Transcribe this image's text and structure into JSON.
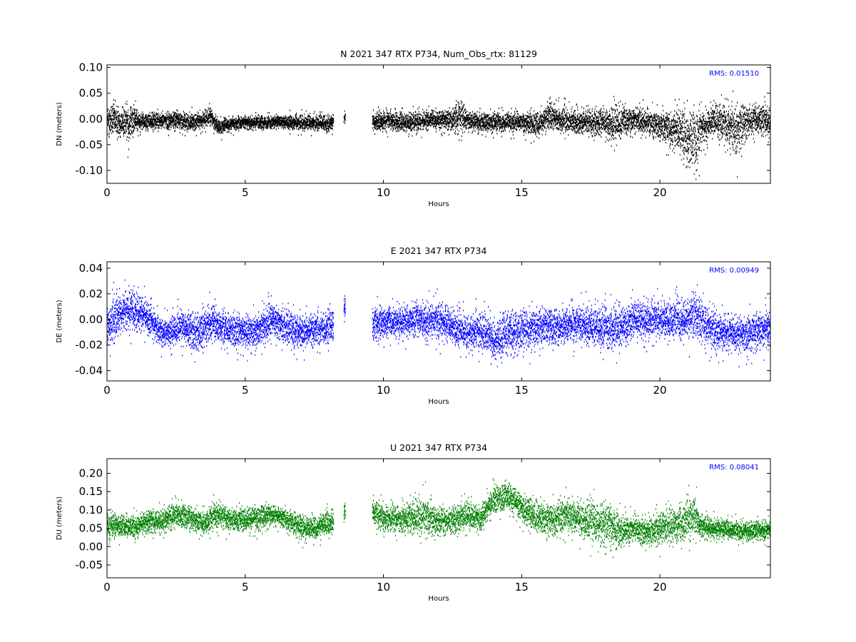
{
  "chart_data": [
    {
      "type": "scatter",
      "title": "N 2021 347 RTX  P734, Num_Obs_rtx: 81129",
      "xlabel": "Hours",
      "ylabel": "DN (meters)",
      "xlim": [
        0,
        24
      ],
      "ylim": [
        -0.125,
        0.105
      ],
      "xticks": [
        "0",
        "5",
        "10",
        "15",
        "20"
      ],
      "yticks": [
        "-0.10",
        "-0.05",
        "0.00",
        "0.05",
        "0.10"
      ],
      "grid": false,
      "color": "#000000",
      "annotation": "RMS:  0.01510",
      "annotation_color": "#0000ff",
      "envelope": {
        "x": [
          0.0,
          0.2,
          0.5,
          0.8,
          1.0,
          1.3,
          2.0,
          2.5,
          3.0,
          3.5,
          3.8,
          4.0,
          4.3,
          5.0,
          6.0,
          7.0,
          8.0,
          8.2,
          8.6,
          9.6,
          10.0,
          11.0,
          12.0,
          12.5,
          12.8,
          13.0,
          13.5,
          14.0,
          15.0,
          15.5,
          16.0,
          17.0,
          18.0,
          18.3,
          19.0,
          20.0,
          20.5,
          21.0,
          21.3,
          21.5,
          22.0,
          22.5,
          22.8,
          23.0,
          23.5,
          24.0
        ],
        "mid": [
          -0.005,
          0.0,
          -0.005,
          -0.005,
          0.0,
          -0.003,
          -0.002,
          0.0,
          -0.005,
          0.0,
          0.005,
          -0.015,
          -0.01,
          -0.005,
          -0.005,
          -0.005,
          -0.008,
          -0.005,
          0.005,
          -0.005,
          -0.003,
          -0.005,
          0.0,
          0.0,
          0.01,
          0.0,
          -0.005,
          -0.005,
          -0.005,
          -0.01,
          0.005,
          -0.005,
          -0.005,
          -0.01,
          0.0,
          -0.01,
          -0.02,
          -0.035,
          -0.045,
          -0.02,
          0.0,
          -0.01,
          -0.025,
          -0.005,
          0.0,
          -0.005
        ],
        "spread": [
          0.035,
          0.04,
          0.035,
          0.045,
          0.03,
          0.02,
          0.018,
          0.02,
          0.018,
          0.018,
          0.02,
          0.018,
          0.015,
          0.014,
          0.014,
          0.016,
          0.016,
          0.016,
          0.01,
          0.02,
          0.02,
          0.02,
          0.02,
          0.025,
          0.045,
          0.02,
          0.02,
          0.02,
          0.02,
          0.025,
          0.03,
          0.025,
          0.03,
          0.035,
          0.025,
          0.03,
          0.04,
          0.06,
          0.065,
          0.045,
          0.035,
          0.05,
          0.055,
          0.045,
          0.03,
          0.03
        ]
      }
    },
    {
      "type": "scatter",
      "title": "E 2021 347 RTX  P734",
      "xlabel": "Hours",
      "ylabel": "DE (meters)",
      "xlim": [
        0,
        24
      ],
      "ylim": [
        -0.048,
        0.045
      ],
      "xticks": [
        "0",
        "5",
        "10",
        "15",
        "20"
      ],
      "yticks": [
        "-0.04",
        "-0.02",
        "0.00",
        "0.02",
        "0.04"
      ],
      "grid": false,
      "color": "#0000ff",
      "annotation": "RMS:  0.00949",
      "annotation_color": "#0000ff",
      "envelope": {
        "x": [
          0.0,
          0.3,
          0.8,
          1.2,
          1.5,
          2.0,
          2.5,
          3.0,
          3.2,
          3.8,
          4.0,
          5.0,
          5.5,
          6.0,
          6.5,
          7.0,
          8.0,
          8.2,
          8.6,
          9.6,
          10.0,
          11.0,
          12.0,
          12.5,
          13.0,
          13.5,
          14.0,
          14.3,
          15.0,
          16.0,
          17.0,
          18.0,
          18.5,
          19.0,
          20.0,
          21.0,
          21.3,
          21.5,
          22.0,
          22.5,
          23.0,
          23.5,
          24.0
        ],
        "mid": [
          -0.008,
          0.002,
          0.008,
          0.005,
          0.0,
          -0.01,
          -0.006,
          -0.005,
          -0.012,
          0.0,
          -0.005,
          -0.01,
          -0.008,
          0.0,
          -0.005,
          -0.01,
          -0.005,
          -0.003,
          0.01,
          -0.003,
          -0.002,
          0.0,
          0.0,
          -0.005,
          -0.01,
          -0.008,
          -0.015,
          -0.012,
          -0.008,
          -0.005,
          -0.003,
          -0.005,
          -0.008,
          0.0,
          0.0,
          0.0,
          0.005,
          -0.002,
          -0.008,
          -0.01,
          -0.012,
          -0.008,
          -0.005
        ],
        "spread": [
          0.018,
          0.02,
          0.018,
          0.016,
          0.014,
          0.012,
          0.014,
          0.014,
          0.018,
          0.016,
          0.014,
          0.014,
          0.014,
          0.016,
          0.016,
          0.014,
          0.014,
          0.014,
          0.01,
          0.014,
          0.014,
          0.014,
          0.016,
          0.016,
          0.016,
          0.016,
          0.018,
          0.02,
          0.018,
          0.016,
          0.016,
          0.018,
          0.018,
          0.016,
          0.016,
          0.018,
          0.022,
          0.018,
          0.016,
          0.016,
          0.016,
          0.016,
          0.016
        ]
      }
    },
    {
      "type": "scatter",
      "title": "U 2021 347 RTX  P734",
      "xlabel": "Hours",
      "ylabel": "DU (meters)",
      "xlim": [
        0,
        24
      ],
      "ylim": [
        -0.085,
        0.24
      ],
      "xticks": [
        "0",
        "5",
        "10",
        "15",
        "20"
      ],
      "yticks": [
        "-0.05",
        "0.00",
        "0.05",
        "0.10",
        "0.15",
        "0.20"
      ],
      "grid": false,
      "color": "#007f00",
      "annotation": "RMS:  0.08041",
      "annotation_color": "#0000ff",
      "envelope": {
        "x": [
          0.0,
          0.5,
          1.0,
          1.5,
          2.0,
          2.5,
          3.0,
          3.5,
          4.0,
          4.5,
          5.0,
          5.5,
          6.0,
          6.5,
          7.0,
          7.5,
          8.0,
          8.2,
          8.6,
          9.6,
          10.0,
          10.5,
          11.0,
          11.5,
          12.0,
          12.5,
          13.0,
          13.5,
          14.0,
          14.5,
          15.0,
          15.5,
          16.0,
          16.5,
          17.0,
          17.5,
          18.0,
          18.3,
          18.6,
          19.0,
          19.5,
          20.0,
          20.5,
          21.0,
          21.3,
          21.5,
          22.0,
          22.5,
          23.0,
          23.5,
          24.0
        ],
        "mid": [
          0.06,
          0.06,
          0.055,
          0.07,
          0.07,
          0.09,
          0.08,
          0.065,
          0.09,
          0.075,
          0.075,
          0.08,
          0.09,
          0.075,
          0.055,
          0.055,
          0.065,
          0.07,
          0.1,
          0.1,
          0.08,
          0.075,
          0.08,
          0.085,
          0.07,
          0.075,
          0.085,
          0.08,
          0.13,
          0.14,
          0.11,
          0.085,
          0.075,
          0.085,
          0.08,
          0.07,
          0.065,
          0.05,
          0.045,
          0.05,
          0.04,
          0.05,
          0.06,
          0.075,
          0.09,
          0.055,
          0.05,
          0.05,
          0.045,
          0.045,
          0.05
        ],
        "spread": [
          0.04,
          0.035,
          0.035,
          0.035,
          0.035,
          0.04,
          0.035,
          0.035,
          0.04,
          0.035,
          0.035,
          0.035,
          0.035,
          0.035,
          0.035,
          0.035,
          0.035,
          0.035,
          0.03,
          0.04,
          0.04,
          0.04,
          0.05,
          0.06,
          0.045,
          0.04,
          0.045,
          0.04,
          0.04,
          0.04,
          0.04,
          0.045,
          0.045,
          0.05,
          0.05,
          0.06,
          0.07,
          0.06,
          0.045,
          0.04,
          0.04,
          0.05,
          0.055,
          0.06,
          0.06,
          0.035,
          0.03,
          0.03,
          0.03,
          0.03,
          0.03
        ]
      }
    }
  ]
}
